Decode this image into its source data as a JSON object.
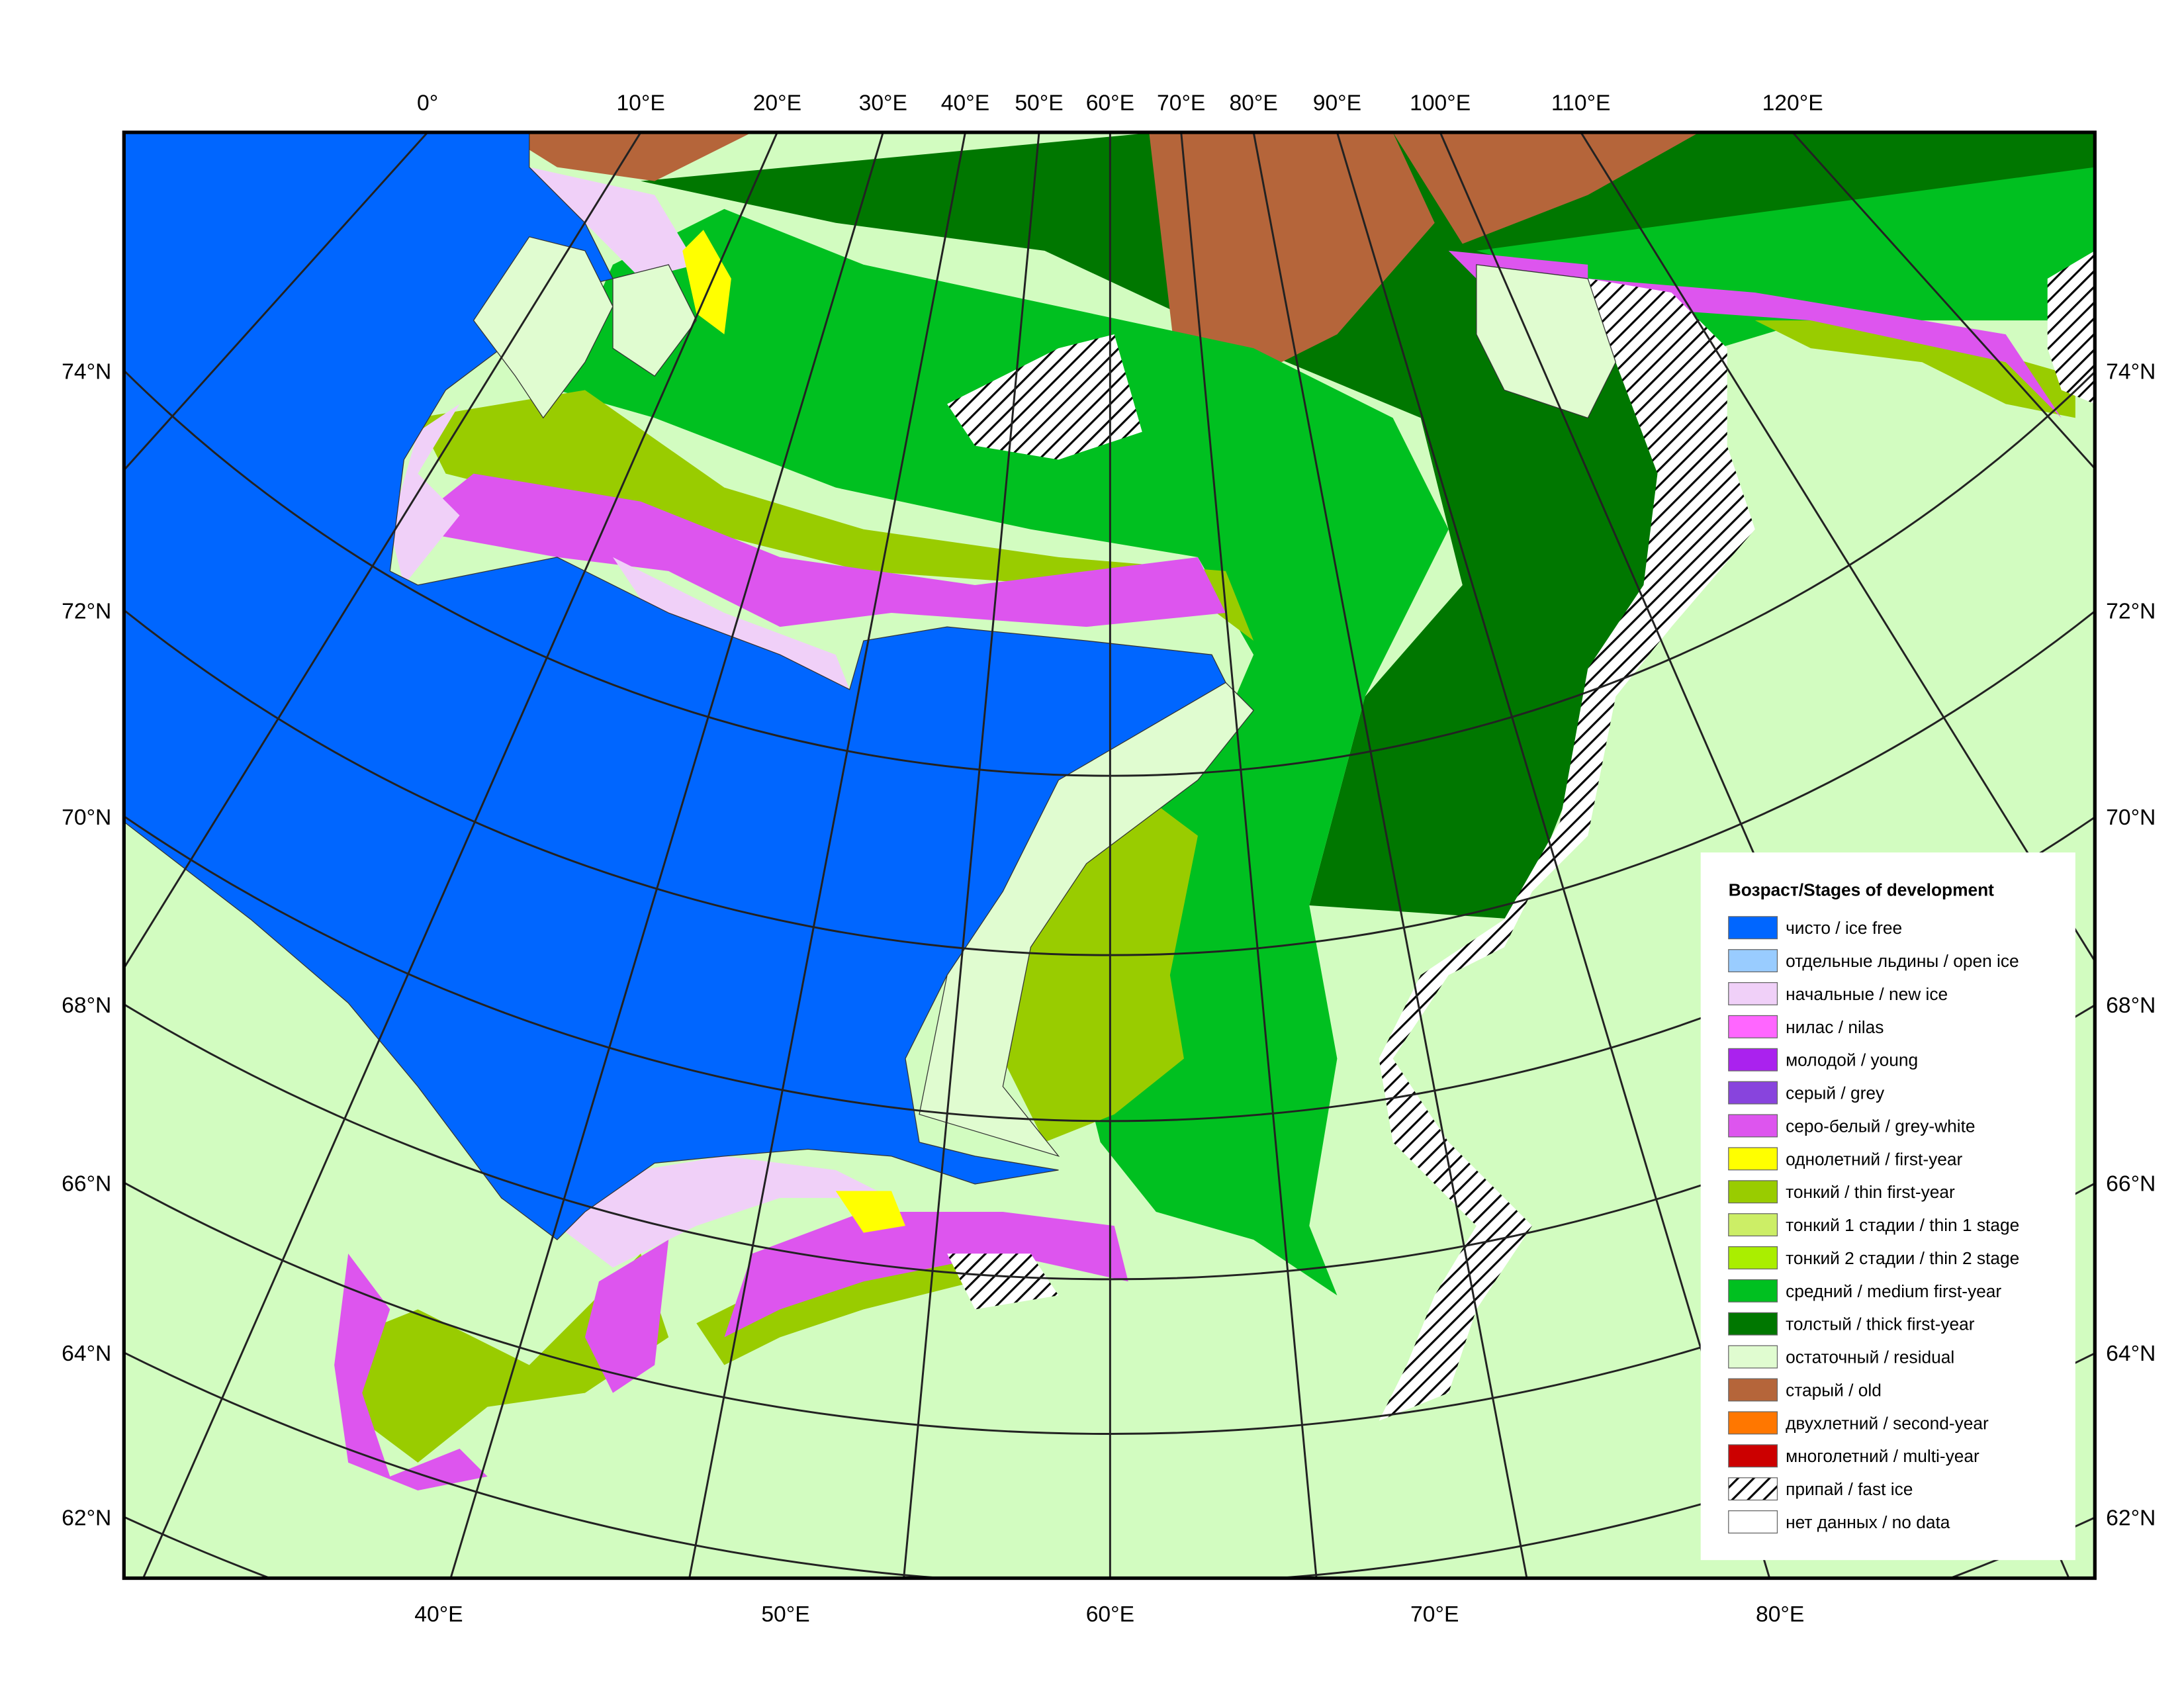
{
  "map": {
    "top_labels": [
      "0°",
      "10°E",
      "20°E",
      "30°E",
      "40°E",
      "50°E",
      "60°E",
      "70°E",
      "80°E",
      "90°E",
      "100°E",
      "110°E",
      "120°E"
    ],
    "bottom_labels": [
      "40°E",
      "50°E",
      "60°E",
      "70°E",
      "80°E"
    ],
    "left_labels": [
      "74°N",
      "72°N",
      "70°N",
      "68°N",
      "66°N",
      "64°N",
      "62°N"
    ],
    "right_labels": [
      "74°N",
      "72°N",
      "70°N",
      "68°N",
      "66°N",
      "64°N",
      "62°N"
    ]
  },
  "legend": {
    "title": "Возраст/Stages of development",
    "items": [
      {
        "label": "чисто / ice free",
        "color": "#0066ff"
      },
      {
        "label": "отдельные льдины / open ice",
        "color": "#99ccff"
      },
      {
        "label": "начальные / new ice",
        "color": "#f0d0f8"
      },
      {
        "label": "нилас / nilas",
        "color": "#ff66ff"
      },
      {
        "label": "молодой / young",
        "color": "#aa22ee"
      },
      {
        "label": "серый / grey",
        "color": "#8844dd"
      },
      {
        "label": "серо-белый / grey-white",
        "color": "#dd55ee"
      },
      {
        "label": "однолетний / first-year",
        "color": "#ffff00"
      },
      {
        "label": "тонкий / thin first-year",
        "color": "#99cc00"
      },
      {
        "label": "тонкий 1 стадии / thin 1 stage",
        "color": "#ccee66"
      },
      {
        "label": "тонкий 2 стадии / thin 2 stage",
        "color": "#aaee00"
      },
      {
        "label": "средний / medium first-year",
        "color": "#00c020"
      },
      {
        "label": "толстый / thick first-year",
        "color": "#007700"
      },
      {
        "label": "остаточный / residual",
        "color": "#e0fcd0"
      },
      {
        "label": "старый / old",
        "color": "#b5653a"
      },
      {
        "label": "двухлетний / second-year",
        "color": "#ff7700"
      },
      {
        "label": "многолетний / multi-year",
        "color": "#cc0000"
      },
      {
        "label": "припай / fast ice",
        "color": "hatch"
      },
      {
        "label": "нет данных / no data",
        "color": "#ffffff"
      }
    ]
  }
}
